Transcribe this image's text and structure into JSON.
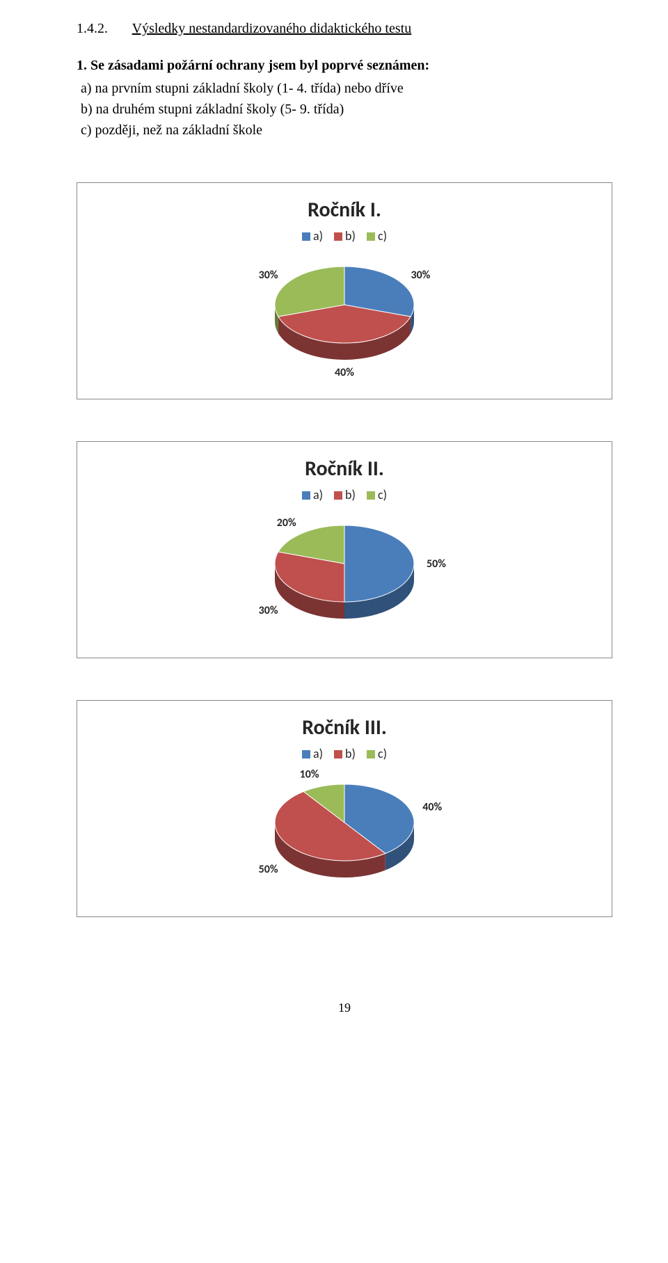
{
  "heading": {
    "number": "1.4.2.",
    "text": "Výsledky nestandardizovaného didaktického testu"
  },
  "question": {
    "title": "1. Se zásadami požární ochrany jsem byl poprvé seznámen:",
    "options": [
      "a) na prvním stupni základní školy (1- 4. třída) nebo dříve",
      "b) na druhém stupni základní školy (5- 9. třída)",
      "c) později, než na základní škole"
    ]
  },
  "legend_labels": [
    "a)",
    "b)",
    "c)"
  ],
  "series_colors": {
    "a": "#4a7ebb",
    "b": "#c0504d",
    "c": "#9bbb59"
  },
  "charts": [
    {
      "title": "Ročník I.",
      "type": "pie3d",
      "slices": [
        {
          "key": "a",
          "value": 30,
          "label": "30%"
        },
        {
          "key": "b",
          "value": 40,
          "label": "40%"
        },
        {
          "key": "c",
          "value": 30,
          "label": "30%"
        }
      ]
    },
    {
      "title": "Ročník II.",
      "type": "pie3d",
      "slices": [
        {
          "key": "a",
          "value": 50,
          "label": "50%"
        },
        {
          "key": "b",
          "value": 30,
          "label": "30%"
        },
        {
          "key": "c",
          "value": 20,
          "label": "20%"
        }
      ]
    },
    {
      "title": "Ročník III.",
      "type": "pie3d",
      "slices": [
        {
          "key": "a",
          "value": 40,
          "label": "40%"
        },
        {
          "key": "b",
          "value": 50,
          "label": "50%"
        },
        {
          "key": "c",
          "value": 10,
          "label": "10%"
        }
      ]
    }
  ],
  "page_number": "19",
  "style": {
    "pie_width": 280,
    "pie_height": 170,
    "pie_depth": 24,
    "dark": {
      "a": "#2e5a93",
      "b": "#8b3634",
      "c": "#6f8d3b"
    },
    "label_color": "#262626",
    "label_fontsize": 16,
    "title_fontsize": 30,
    "legend_fontsize": 18,
    "box_border_color": "#888888"
  }
}
